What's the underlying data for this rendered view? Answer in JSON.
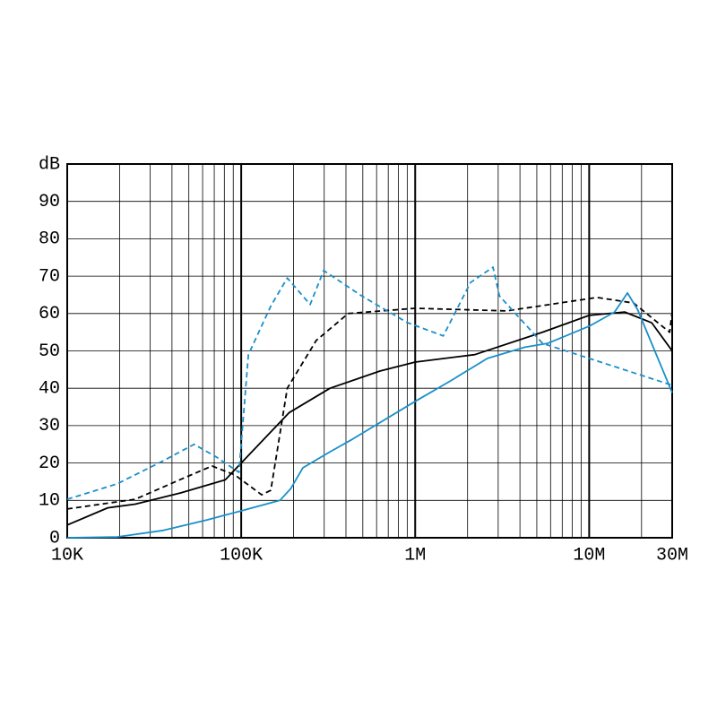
{
  "chart_data": {
    "type": "line",
    "log_x": true,
    "grid": true,
    "xlim": [
      10000,
      30000000
    ],
    "xticks": [
      {
        "value": 10000,
        "label": "10K"
      },
      {
        "value": 100000,
        "label": "100K"
      },
      {
        "value": 1000000,
        "label": "1M"
      },
      {
        "value": 10000000,
        "label": "10M"
      },
      {
        "value": 30000000,
        "label": "30M"
      }
    ],
    "ylim": [
      0,
      100
    ],
    "yticks": [
      0,
      10,
      20,
      30,
      40,
      50,
      60,
      70,
      80,
      90,
      {
        "value": 100,
        "label": "dB"
      }
    ],
    "series": [
      {
        "color": "#000000",
        "dash": false,
        "x": [
          10000,
          17100,
          24600,
          44800,
          81000,
          100000,
          189000,
          324000,
          627000,
          1000000,
          2200000,
          5400000,
          10000000,
          16000000,
          22900000,
          30000000
        ],
        "values": [
          3.4,
          8,
          9,
          12,
          15.5,
          20,
          33.5,
          40,
          44.6,
          47,
          49,
          55,
          59.5,
          60.4,
          57.5,
          50
        ]
      },
      {
        "color": "#000000",
        "dash": true,
        "x": [
          10000,
          24600,
          44800,
          68000,
          92000,
          131000,
          148000,
          184000,
          270000,
          412000,
          1000000,
          3360000,
          11100000,
          18000000,
          29000000,
          30000000
        ],
        "values": [
          7.7,
          10.3,
          15.6,
          19.2,
          16.8,
          11.5,
          12.7,
          40,
          52.8,
          60,
          61.4,
          60.7,
          64.3,
          62.8,
          55,
          60.4
        ]
      },
      {
        "color": "#1a8fc9",
        "dash": false,
        "x": [
          10000,
          19300,
          35000,
          64000,
          100000,
          167000,
          193000,
          226000,
          324000,
          437000,
          1000000,
          1600000,
          2600000,
          4270000,
          5760000,
          10000000,
          14000000,
          16600000,
          19000000,
          30000000
        ],
        "values": [
          0,
          0.2,
          1.9,
          4.8,
          7.2,
          10,
          13.2,
          18.7,
          23,
          26.4,
          36.5,
          42,
          48,
          51,
          52,
          56.6,
          60.4,
          65.5,
          61,
          38.8
        ]
      },
      {
        "color": "#1a8fc9",
        "dash": true,
        "x": [
          10000,
          19300,
          35000,
          53600,
          72000,
          97000,
          110000,
          148000,
          184000,
          249000,
          298000,
          493000,
          898000,
          1450000,
          2080000,
          2800000,
          3050000,
          5400000,
          10000000,
          30000000
        ],
        "values": [
          10.3,
          14.4,
          20.4,
          25,
          21.6,
          17.5,
          49,
          62,
          69.5,
          62.4,
          71.5,
          64.7,
          57.6,
          54,
          68.3,
          72.4,
          64.7,
          52,
          48,
          40.8
        ]
      }
    ]
  }
}
